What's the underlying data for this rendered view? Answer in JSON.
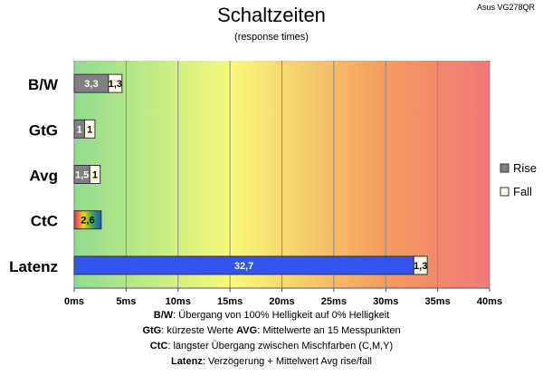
{
  "header": {
    "title": "Schaltzeiten",
    "subtitle": "(response times)",
    "model": "Asus VG278QR"
  },
  "colors": {
    "rise": "#808080",
    "fall": "#fffbe6",
    "latency_bar": "#3355ee",
    "gradient": [
      "#8fdc8f",
      "#f7f97a",
      "#f59a5e",
      "#f07a7a"
    ],
    "ctc_gradient": [
      "#e02a80",
      "#f7d400",
      "#3bb04a",
      "#1f4fd0"
    ]
  },
  "chart_data": {
    "type": "bar",
    "orientation": "horizontal",
    "stacked": true,
    "title": "Schaltzeiten",
    "subtitle": "(response times)",
    "categories": [
      "B/W",
      "GtG",
      "Avg",
      "CtC",
      "Latenz"
    ],
    "series": [
      {
        "name": "Rise",
        "values": [
          3.3,
          1,
          1.5,
          2.6,
          32.7
        ],
        "labels": [
          "3,3",
          "1",
          "1,5",
          "2,6",
          "32,7"
        ]
      },
      {
        "name": "Fall",
        "values": [
          1.3,
          1,
          1,
          null,
          1.3
        ],
        "labels": [
          "1,3",
          "1",
          "1",
          "",
          "1,3"
        ]
      }
    ],
    "xlim": [
      0,
      40
    ],
    "x_ticks": [
      0,
      5,
      10,
      15,
      20,
      25,
      30,
      35,
      40
    ],
    "x_tick_labels": [
      "0ms",
      "5ms",
      "10ms",
      "15ms",
      "20ms",
      "25ms",
      "30ms",
      "35ms",
      "40ms"
    ],
    "xlabel": "",
    "ylabel": "",
    "grid": "vertical",
    "legend_position": "right"
  },
  "legend": {
    "rise": "Rise",
    "fall": "Fall"
  },
  "notes": {
    "line1_key": "B/W",
    "line1_text": ":  Übergang von 100% Helligkeit auf 0% Helligkeit",
    "line2_key1": "GtG",
    "line2_text1": ": kürzeste  Werte",
    "line2_key2": "AVG",
    "line2_text2": ": Mittelwerte  an 15 Messpunkten",
    "line3_key": "CtC",
    "line3_text": ": längster Übergang  zwischen Mischfarben  (C,M,Y)",
    "line4_key": "Latenz",
    "line4_text": ": Verzögerung  + Mittelwert Avg rise/fall"
  }
}
